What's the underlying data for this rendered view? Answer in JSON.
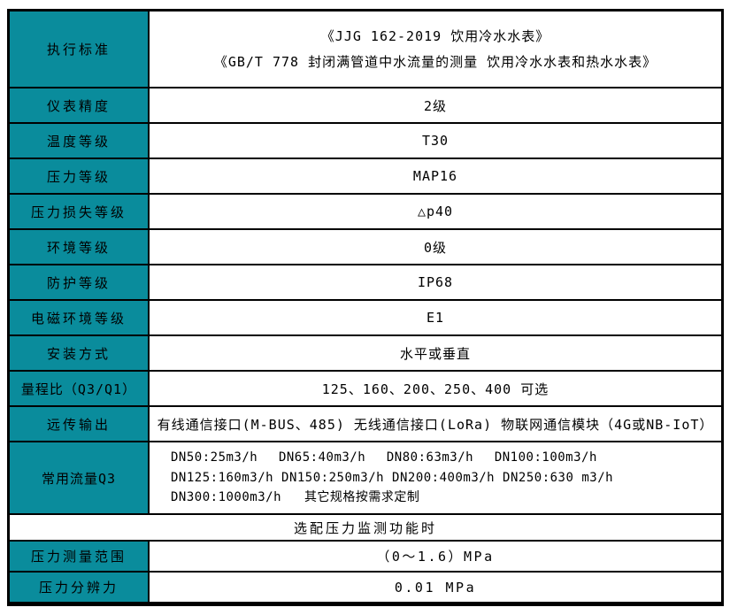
{
  "table": {
    "accent_color": "#0a8c9c",
    "border_color": "#000000",
    "rows": [
      {
        "label": "执行标准",
        "lines": [
          "《JJG 162-2019 饮用冷水水表》",
          "《GB/T 778 封闭满管道中水流量的测量 饮用冷水水表和热水水表》"
        ]
      },
      {
        "label": "仪表精度",
        "value": "2级"
      },
      {
        "label": "温度等级",
        "value": "T30"
      },
      {
        "label": "压力等级",
        "value": "MAP16"
      },
      {
        "label": "压力损失等级",
        "value": "△p40"
      },
      {
        "label": "环境等级",
        "value": "0级"
      },
      {
        "label": "防护等级",
        "value": "IP68"
      },
      {
        "label": "电磁环境等级",
        "value": "E1"
      },
      {
        "label": "安装方式",
        "value": "水平或垂直"
      },
      {
        "label": "量程比（Q3/Q1）",
        "value": "125、160、200、250、400 可选"
      },
      {
        "label": "远传输出",
        "value": "有线通信接口(M-BUS、485) 无线通信接口(LoRa) 物联网通信模块（4G或NB-IoT）"
      },
      {
        "label": "常用流量Q3",
        "flow": [
          [
            "DN50:25m3/h",
            "DN65:40m3/h",
            "DN80:63m3/h",
            "DN100:100m3/h"
          ],
          [
            "DN125:160m3/h",
            "DN150:250m3/h",
            "DN200:400m3/h",
            "DN250:630 m3/h"
          ],
          [
            "DN300:1000m3/h",
            "其它规格按需求定制"
          ]
        ]
      }
    ],
    "section_title": "选配压力监测功能时",
    "pressure_rows": [
      {
        "label": "压力测量范围",
        "value": "（0～1.6）MPa"
      },
      {
        "label": "压力分辨力",
        "value": "0.01 MPa"
      }
    ]
  }
}
